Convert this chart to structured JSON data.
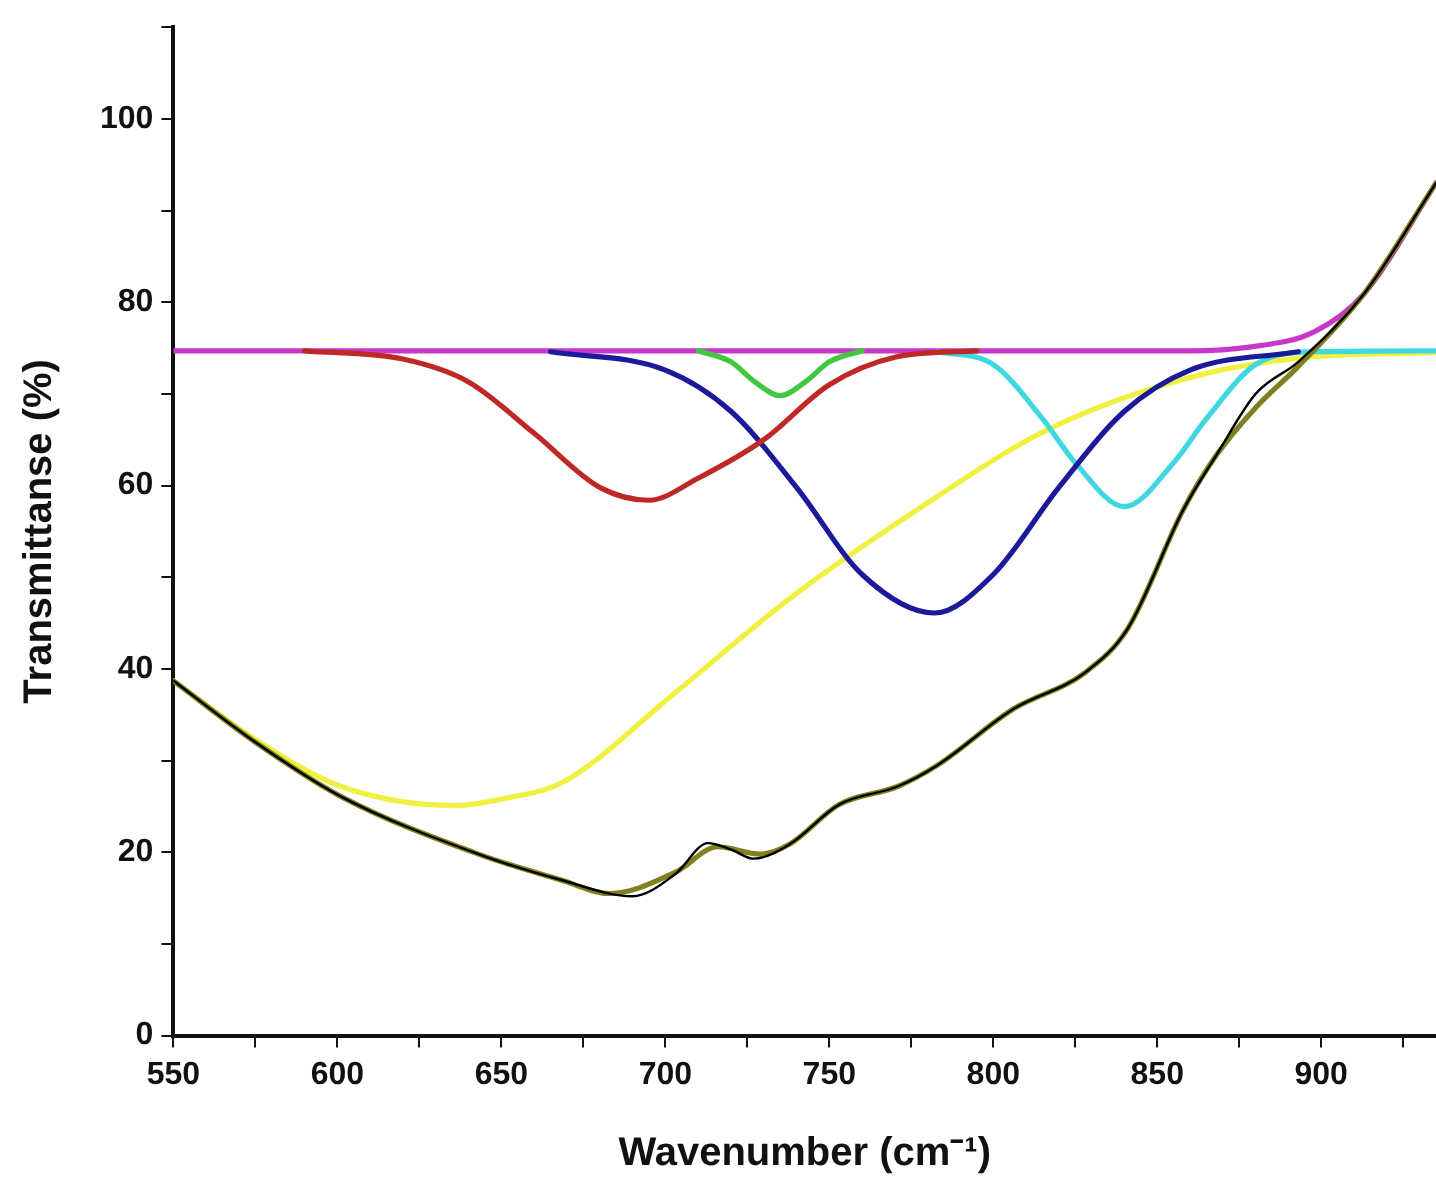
{
  "chart_data": {
    "type": "line",
    "xlabel": "Wavenumber (cm⁻¹)",
    "ylabel": "Transmittanse (%)",
    "xlim": [
      550,
      935
    ],
    "ylim": [
      0,
      110
    ],
    "xticks": [
      550,
      {
        "value": 575,
        "label": null
      },
      600,
      {
        "value": 625,
        "label": null
      },
      650,
      {
        "value": 675,
        "label": null
      },
      700,
      {
        "value": 725,
        "label": null
      },
      750,
      {
        "value": 775,
        "label": null
      },
      800,
      {
        "value": 825,
        "label": null
      },
      850,
      {
        "value": 875,
        "label": null
      },
      900,
      {
        "value": 925,
        "label": null
      }
    ],
    "yticks": [
      0,
      {
        "value": 10,
        "label": null
      },
      20,
      {
        "value": 30,
        "label": null
      },
      40,
      {
        "value": 50,
        "label": null
      },
      60,
      {
        "value": 70,
        "label": null
      },
      80,
      {
        "value": 90,
        "label": null
      },
      100,
      {
        "value": 110,
        "label": null
      }
    ],
    "marker": "none",
    "line_style": "solid",
    "legend": false,
    "series": [
      {
        "color": "#000000",
        "x": [
          550,
          575,
          601,
          643,
          668,
          690,
          703,
          713,
          720,
          727,
          738,
          753,
          771,
          783,
          806,
          828,
          841,
          858,
          868,
          880,
          893,
          913,
          935
        ],
        "values": [
          38.7,
          32,
          26.1,
          19.8,
          17,
          15.2,
          17.6,
          21,
          20.3,
          19.3,
          20.9,
          25.2,
          27.2,
          29.5,
          35.6,
          39.6,
          44.4,
          57.4,
          63.3,
          70,
          73.5,
          80.9,
          93
        ]
      },
      {
        "color": "#808020",
        "x": [
          550,
          575,
          601,
          643,
          668,
          683,
          703,
          716,
          729,
          738,
          753,
          771,
          783,
          806,
          828,
          841,
          858,
          868,
          880,
          893,
          913,
          935
        ],
        "values": [
          38.7,
          32,
          26.1,
          19.8,
          17,
          15.5,
          17.8,
          20.6,
          19.8,
          20.9,
          25.2,
          27.2,
          29.5,
          35.6,
          39.6,
          44.4,
          57.4,
          63.3,
          68.5,
          73,
          80.9,
          93
        ]
      },
      {
        "color": "#c02828",
        "x": [
          590,
          620,
          640,
          660,
          680,
          695,
          710,
          730,
          750,
          770,
          795
        ],
        "values": [
          74.7,
          73.8,
          71.3,
          65.7,
          59.8,
          58.4,
          60.8,
          65,
          71,
          74,
          74.7
        ]
      },
      {
        "color": "#1a1a9a",
        "x": [
          665,
          700,
          720,
          740,
          760,
          782,
          800,
          820,
          840,
          860,
          893
        ],
        "values": [
          74.6,
          72.6,
          68.1,
          59.8,
          50.3,
          46.1,
          50.3,
          59.8,
          68.1,
          72.6,
          74.6
        ]
      },
      {
        "color": "#40c840",
        "x": [
          710,
          720,
          727,
          735,
          743,
          750,
          760
        ],
        "values": [
          74.7,
          73.5,
          71.4,
          69.8,
          71.4,
          73.5,
          74.7
        ]
      },
      {
        "color": "#40d8e0",
        "x": [
          783,
          800,
          815,
          825,
          840,
          855,
          865,
          880,
          898,
          935
        ],
        "values": [
          74.6,
          73.2,
          67.3,
          62.5,
          57.7,
          62.5,
          67.3,
          73.2,
          74.6,
          74.7
        ]
      },
      {
        "color": "#f0f040",
        "x": [
          550,
          575,
          601,
          636,
          650,
          669,
          703,
          738,
          777,
          816,
          858,
          893,
          935
        ],
        "values": [
          38.7,
          32.3,
          27.2,
          25.1,
          25.8,
          27.7,
          37.4,
          47.7,
          57.4,
          66,
          71.6,
          73.9,
          74.5
        ]
      },
      {
        "color": "#c838c8",
        "x": [
          550,
          860,
          878,
          898,
          913,
          935
        ],
        "values": [
          74.7,
          74.7,
          75.1,
          76.8,
          80.9,
          93
        ]
      }
    ]
  }
}
